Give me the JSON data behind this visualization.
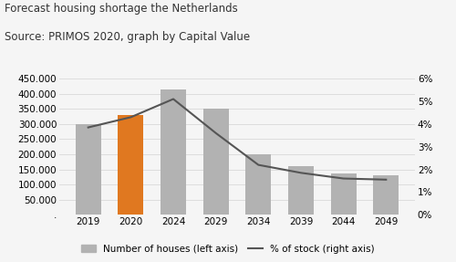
{
  "categories": [
    "2019",
    "2020",
    "2024",
    "2029",
    "2034",
    "2039",
    "2044",
    "2049"
  ],
  "bar_values": [
    300000,
    330000,
    415000,
    350000,
    200000,
    162000,
    137000,
    132000
  ],
  "bar_colors": [
    "#b2b2b2",
    "#e07820",
    "#b2b2b2",
    "#b2b2b2",
    "#b2b2b2",
    "#b2b2b2",
    "#b2b2b2",
    "#b2b2b2"
  ],
  "line_values": [
    3.85,
    4.3,
    5.1,
    3.6,
    2.2,
    1.85,
    1.6,
    1.55
  ],
  "title_line1": "Forecast housing shortage the Netherlands",
  "title_line2": "Source: PRIMOS 2020, graph by Capital Value",
  "ylim_left": [
    0,
    450000
  ],
  "ylim_right": [
    0,
    6
  ],
  "yticks_left": [
    0,
    50000,
    100000,
    150000,
    200000,
    250000,
    300000,
    350000,
    400000,
    450000
  ],
  "yticks_right": [
    0,
    1,
    2,
    3,
    4,
    5,
    6
  ],
  "ytick_labels_left": [
    ".",
    "50.000",
    "100.000",
    "150.000",
    "200.000",
    "250.000",
    "300.000",
    "350.000",
    "400.000",
    "450.000"
  ],
  "ytick_labels_right": [
    "0%",
    "1%",
    "2%",
    "3%",
    "4%",
    "5%",
    "6%"
  ],
  "legend_bar_label": "Number of houses (left axis)",
  "legend_line_label": "% of stock (right axis)",
  "bar_color_legend": "#b2b2b2",
  "line_color": "#555555",
  "background_color": "#f5f5f5",
  "grid_color": "#dddddd",
  "title_fontsize": 8.5,
  "tick_fontsize": 7.5,
  "legend_fontsize": 7.5
}
